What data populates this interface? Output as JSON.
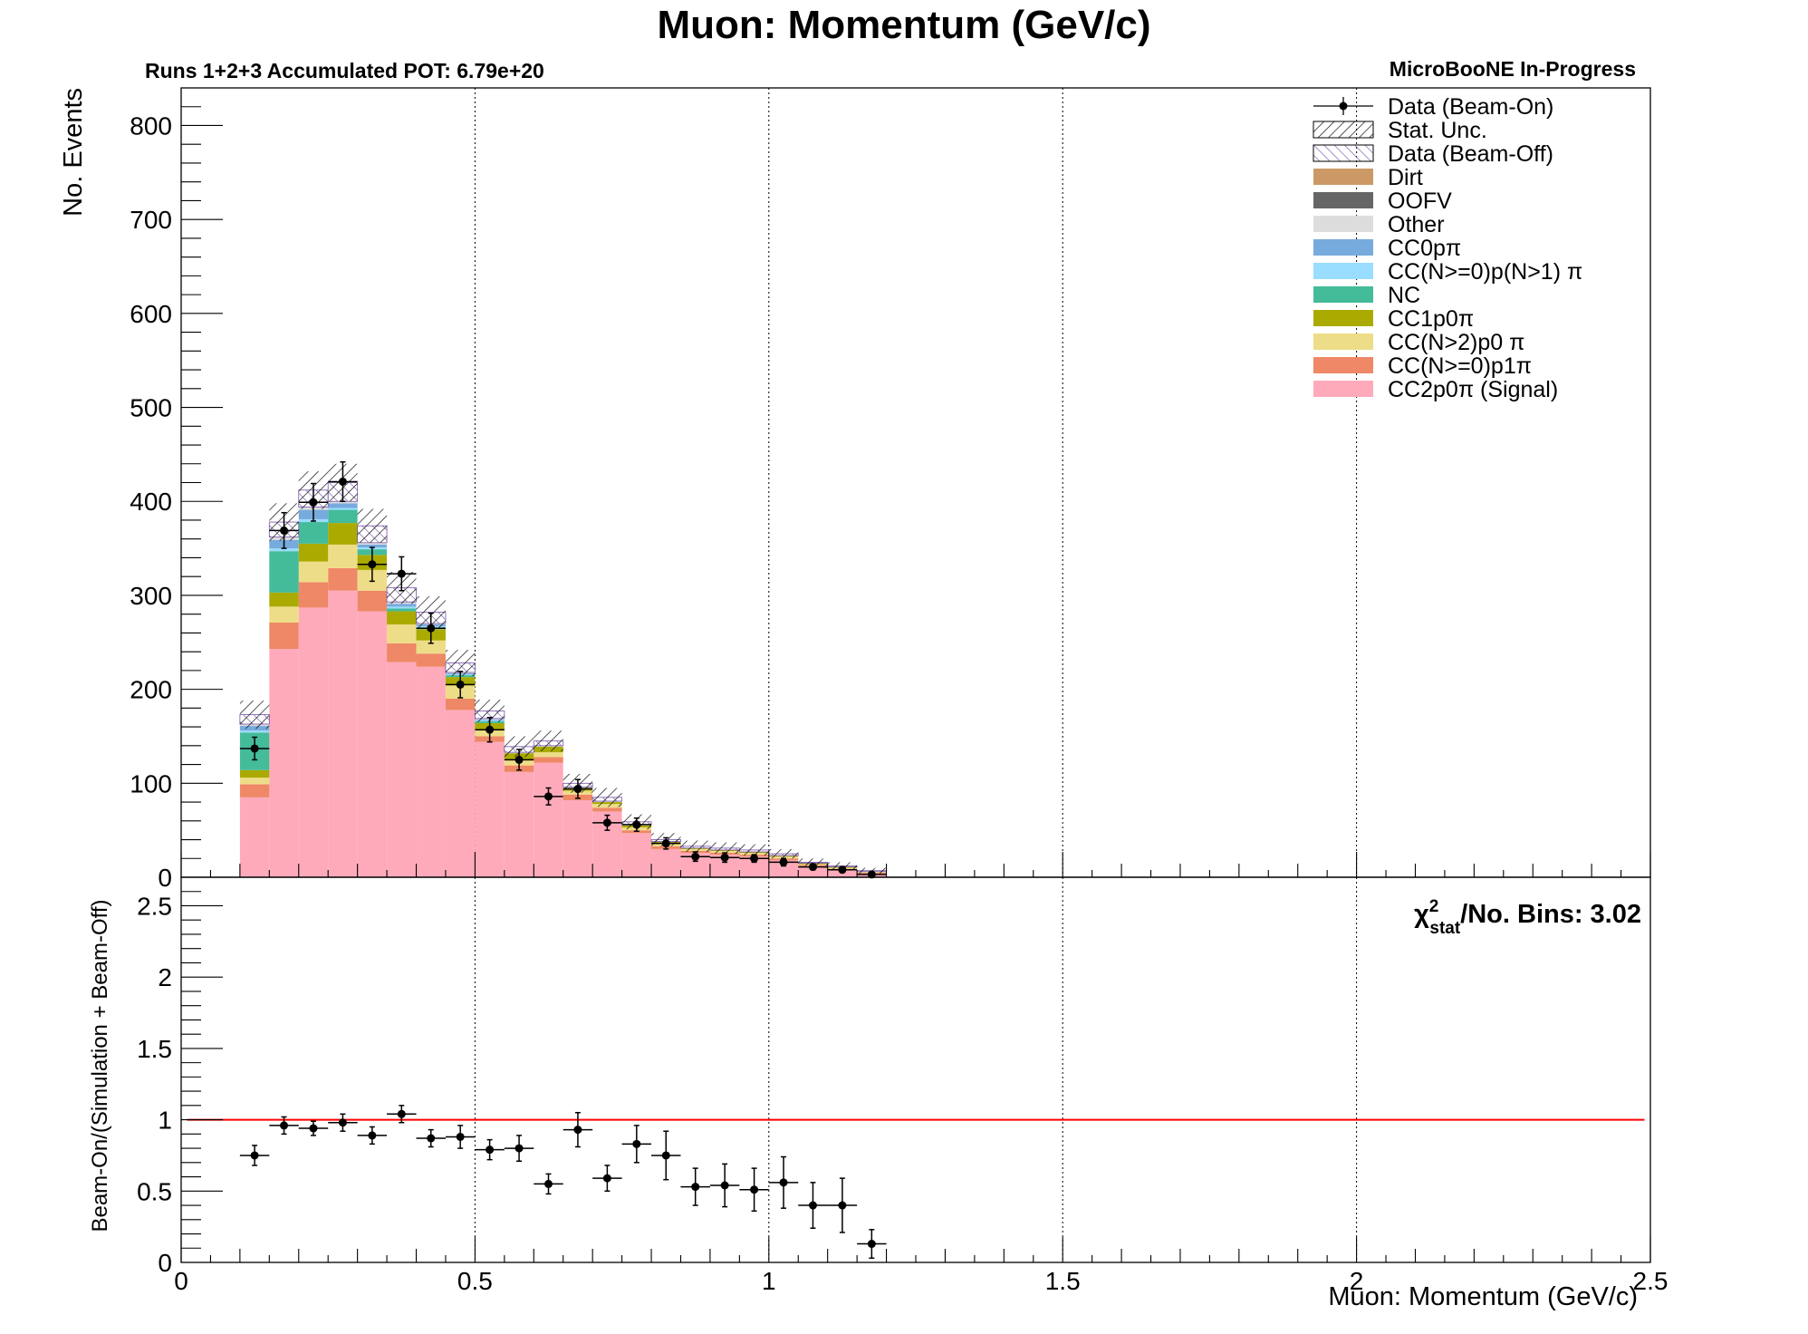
{
  "chart_data": [
    {
      "type": "bar",
      "stacked": true,
      "title": "Muon: Momentum (GeV/c)",
      "subtitle_left": "Runs 1+2+3 Accumulated POT: 6.79e+20",
      "subtitle_right": "MicroBooNE In-Progress",
      "ylabel": "No. Events",
      "xlim": [
        0,
        2.5
      ],
      "ylim": [
        0,
        840
      ],
      "yticks": [
        0,
        100,
        200,
        300,
        400,
        500,
        600,
        700,
        800
      ],
      "grid": "vertical dotted at major x ticks",
      "legend_position": "top-right",
      "bin_edges": [
        0.1,
        0.15,
        0.2,
        0.25,
        0.3,
        0.35,
        0.4,
        0.45,
        0.5,
        0.55,
        0.6,
        0.65,
        0.7,
        0.75,
        0.8,
        0.85,
        0.9,
        0.95,
        1.0,
        1.05,
        1.1,
        1.15,
        1.2
      ],
      "legend": [
        {
          "label": "Data (Beam-On)",
          "kind": "marker"
        },
        {
          "label": "Stat. Unc.",
          "kind": "hatch"
        },
        {
          "label": "Data (Beam-Off)",
          "kind": "hatch-purple"
        },
        {
          "label": "Dirt",
          "kind": "fill"
        },
        {
          "label": "OOFV",
          "kind": "fill"
        },
        {
          "label": "Other",
          "kind": "fill"
        },
        {
          "label": "CC0pπ",
          "kind": "fill"
        },
        {
          "label": "CC(N>=0)p(N>1) π",
          "kind": "fill"
        },
        {
          "label": "NC",
          "kind": "fill"
        },
        {
          "label": "CC1p0π",
          "kind": "fill"
        },
        {
          "label": "CC(N>2)p0 π",
          "kind": "fill"
        },
        {
          "label": "CC(N>=0)p1π",
          "kind": "fill"
        },
        {
          "label": "CC2p0π (Signal)",
          "kind": "fill"
        }
      ],
      "series": [
        {
          "name": "CC2p0π (Signal)",
          "color": "#ffaabb",
          "values": [
            85,
            243,
            287,
            305,
            283,
            229,
            224,
            178,
            144,
            112,
            122,
            82,
            70,
            47,
            30,
            26,
            24,
            22,
            18,
            12,
            8,
            4
          ]
        },
        {
          "name": "CC(N>=0)p1π",
          "color": "#ee8866",
          "values": [
            14,
            28,
            27,
            24,
            22,
            20,
            14,
            12,
            6,
            7,
            6,
            6,
            4,
            3,
            3,
            2,
            2,
            2,
            2,
            1,
            1,
            1
          ]
        },
        {
          "name": "CC(N>2)p0 π",
          "color": "#eedd88",
          "values": [
            7,
            17,
            22,
            25,
            22,
            20,
            14,
            14,
            6,
            6,
            5,
            4,
            4,
            3,
            3,
            2,
            2,
            2,
            2,
            1,
            1,
            1
          ]
        },
        {
          "name": "CC1p0π",
          "color": "#aaaa00",
          "values": [
            8,
            15,
            19,
            23,
            16,
            14,
            12,
            9,
            8,
            7,
            6,
            3,
            2,
            2,
            2,
            1,
            1,
            1,
            1,
            1,
            1,
            0
          ]
        },
        {
          "name": "NC",
          "color": "#44bb99",
          "values": [
            40,
            44,
            23,
            14,
            6,
            3,
            2,
            2,
            2,
            0,
            0,
            0,
            0,
            0,
            0,
            0,
            0,
            0,
            0,
            0,
            0,
            0
          ]
        },
        {
          "name": "CC(N>=0)p(N>1) π",
          "color": "#99ddff",
          "values": [
            2,
            3,
            3,
            2,
            2,
            2,
            1,
            1,
            1,
            0,
            0,
            0,
            0,
            0,
            0,
            0,
            0,
            0,
            0,
            0,
            0,
            0
          ]
        },
        {
          "name": "CC0pπ",
          "color": "#77aadd",
          "values": [
            5,
            9,
            10,
            5,
            3,
            3,
            2,
            1,
            1,
            0,
            0,
            0,
            0,
            0,
            0,
            0,
            0,
            0,
            0,
            0,
            0,
            0
          ]
        },
        {
          "name": "Other",
          "color": "#dddddd",
          "values": [
            2,
            3,
            3,
            2,
            2,
            2,
            1,
            1,
            1,
            1,
            1,
            1,
            1,
            1,
            0,
            0,
            0,
            0,
            0,
            0,
            0,
            0
          ]
        },
        {
          "name": "OOFV",
          "color": "#666666",
          "values": [
            0,
            0,
            0,
            0,
            0,
            0,
            0,
            0,
            0,
            0,
            0,
            0,
            0,
            0,
            0,
            0,
            0,
            0,
            0,
            0,
            0,
            0
          ]
        },
        {
          "name": "Dirt",
          "color": "#cc9966",
          "values": [
            0,
            0,
            0,
            0,
            0,
            0,
            0,
            0,
            0,
            0,
            0,
            0,
            0,
            0,
            0,
            0,
            0,
            0,
            0,
            0,
            0,
            0
          ]
        },
        {
          "name": "Data (Beam-Off)",
          "color": "#7755aa",
          "values": [
            10,
            16,
            18,
            20,
            18,
            15,
            12,
            10,
            8,
            6,
            5,
            4,
            4,
            3,
            2,
            2,
            2,
            2,
            2,
            1,
            1,
            1
          ]
        }
      ],
      "stat_unc_halfwidth": [
        15,
        20,
        20,
        20,
        18,
        17,
        17,
        14,
        12,
        11,
        11,
        10,
        10,
        8,
        7,
        6,
        6,
        6,
        5,
        4,
        4,
        3
      ],
      "data_beam_on": {
        "name": "Data (Beam-On)",
        "x": [
          0.125,
          0.175,
          0.225,
          0.275,
          0.325,
          0.375,
          0.425,
          0.475,
          0.525,
          0.575,
          0.625,
          0.675,
          0.725,
          0.775,
          0.825,
          0.875,
          0.925,
          0.975,
          1.025,
          1.075,
          1.125,
          1.175
        ],
        "y": [
          137,
          369,
          399,
          421,
          333,
          323,
          265,
          205,
          157,
          125,
          86,
          94,
          58,
          56,
          36,
          22,
          21,
          20,
          16,
          11,
          8,
          3
        ],
        "yerr": [
          12,
          19,
          20,
          21,
          18,
          18,
          16,
          14,
          13,
          11,
          9,
          10,
          8,
          7,
          6,
          5,
          5,
          4,
          4,
          3,
          3,
          2
        ]
      }
    },
    {
      "type": "scatter",
      "ylabel": "Beam-On/(Simulation + Beam-Off)",
      "xlabel": "Muon: Momentum (GeV/c)",
      "xlim": [
        0,
        2.5
      ],
      "ylim": [
        0,
        2.7
      ],
      "xticks": [
        0,
        0.5,
        1,
        1.5,
        2,
        2.5
      ],
      "xtick_labels": [
        "0",
        "0.5",
        "1",
        "1.5",
        "2",
        "2.5"
      ],
      "yticks": [
        0,
        0.5,
        1,
        1.5,
        2,
        2.5
      ],
      "ytick_labels": [
        "0",
        "0.5",
        "1",
        "1.5",
        "2",
        "2.5"
      ],
      "reference_line": 1,
      "reference_color": "#ff0000",
      "annotation": {
        "chi": "χ",
        "sup": "2",
        "sub": "stat",
        "rest": "/No. Bins: 3.02"
      },
      "x": [
        0.125,
        0.175,
        0.225,
        0.275,
        0.325,
        0.375,
        0.425,
        0.475,
        0.525,
        0.575,
        0.625,
        0.675,
        0.725,
        0.775,
        0.825,
        0.875,
        0.925,
        0.975,
        1.025,
        1.075,
        1.125,
        1.175
      ],
      "y": [
        0.75,
        0.96,
        0.94,
        0.98,
        0.89,
        1.04,
        0.87,
        0.88,
        0.79,
        0.8,
        0.55,
        0.93,
        0.59,
        0.83,
        0.75,
        0.53,
        0.54,
        0.51,
        0.56,
        0.4,
        0.4,
        0.13
      ],
      "yerr": [
        0.07,
        0.06,
        0.05,
        0.06,
        0.06,
        0.06,
        0.06,
        0.08,
        0.07,
        0.09,
        0.07,
        0.12,
        0.09,
        0.13,
        0.17,
        0.13,
        0.15,
        0.15,
        0.18,
        0.16,
        0.19,
        0.1
      ]
    }
  ]
}
